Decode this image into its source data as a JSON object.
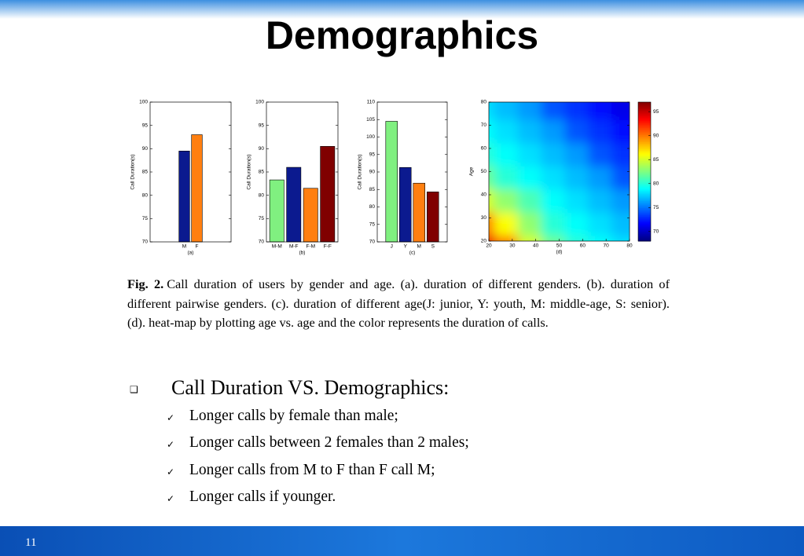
{
  "slide": {
    "title": "Demographics",
    "page_number": "11",
    "caption": {
      "label": "Fig. 2.",
      "text": "Call duration of users by gender and age. (a). duration of different genders. (b). duration of different pairwise genders. (c). duration of different age(J: junior, Y: youth, M: middle-age, S: senior). (d). heat-map by plotting age vs. age and the color represents the duration of calls."
    },
    "bullet": {
      "heading": "Call Duration VS. Demographics:",
      "items": [
        "Longer calls by female than male;",
        "Longer calls between 2 females than 2 males;",
        "Longer calls from M to F than F call M;",
        "Longer calls if younger."
      ]
    }
  },
  "chart_data": [
    {
      "type": "bar",
      "xlabel": "(a)",
      "ylabel": "Call Duration(s)",
      "categories": [
        "M",
        "F"
      ],
      "values": [
        89.5,
        93
      ],
      "colors": [
        "#0b1a8f",
        "#ff7f10"
      ],
      "ylim": [
        70,
        100
      ],
      "yticks": [
        70,
        75,
        80,
        85,
        90,
        95,
        100
      ]
    },
    {
      "type": "bar",
      "xlabel": "(b)",
      "ylabel": "Call Duration(s)",
      "categories": [
        "M-M",
        "M-F",
        "F-M",
        "F-F"
      ],
      "values": [
        83.3,
        86,
        81.5,
        90.5
      ],
      "colors": [
        "#80f080",
        "#0b1a8f",
        "#ff7f10",
        "#800000"
      ],
      "ylim": [
        70,
        100
      ],
      "yticks": [
        70,
        75,
        80,
        85,
        90,
        95,
        100
      ]
    },
    {
      "type": "bar",
      "xlabel": "(c)",
      "ylabel": "Call Duration(s)",
      "categories": [
        "J",
        "Y",
        "M",
        "S"
      ],
      "values": [
        104.5,
        91.3,
        86.8,
        84.3
      ],
      "colors": [
        "#80f080",
        "#0b1a8f",
        "#ff7f10",
        "#800000"
      ],
      "ylim": [
        70,
        110
      ],
      "yticks": [
        70,
        75,
        80,
        85,
        90,
        95,
        100,
        105,
        110
      ]
    },
    {
      "type": "heatmap",
      "xlabel": "(d)",
      "ylabel": "Age",
      "x": [
        20,
        30,
        40,
        50,
        60,
        70,
        80
      ],
      "y": [
        20,
        30,
        40,
        50,
        60,
        70,
        80
      ],
      "z": [
        [
          94,
          90,
          85,
          82,
          80,
          79,
          78
        ],
        [
          90,
          86,
          83,
          80,
          79,
          78,
          77
        ],
        [
          85,
          83,
          81,
          79,
          78,
          77,
          76
        ],
        [
          82,
          80,
          79,
          78,
          77,
          76,
          74
        ],
        [
          80,
          79,
          78,
          77,
          76,
          74,
          73
        ],
        [
          79,
          78,
          77,
          76,
          74,
          73,
          72
        ],
        [
          78,
          77,
          76,
          74,
          73,
          72,
          71
        ]
      ],
      "xlim": [
        20,
        80
      ],
      "ylim": [
        20,
        80
      ],
      "xticks": [
        20,
        30,
        40,
        50,
        60,
        70,
        80
      ],
      "yticks": [
        20,
        30,
        40,
        50,
        60,
        70,
        80
      ],
      "clim": [
        68,
        97
      ],
      "cticks": [
        70,
        75,
        80,
        85,
        90,
        95
      ]
    }
  ]
}
